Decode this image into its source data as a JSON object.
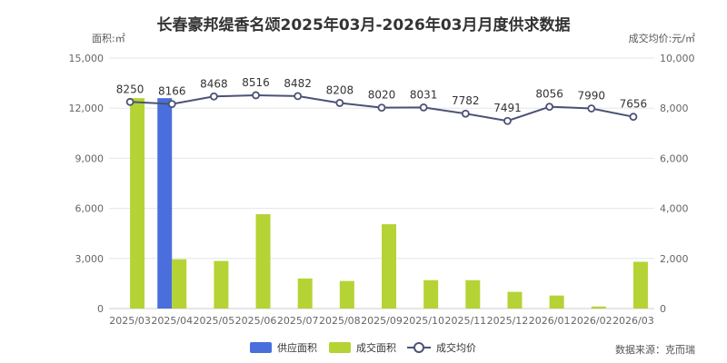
{
  "chart_data": {
    "type": "bar",
    "title": "长春豪邦缇香名颂2025年03月-2026年03月月度供求数据",
    "left_axis_label": "面积:㎡",
    "right_axis_label": "成交均价:元/㎡",
    "categories": [
      "2025/03",
      "2025/04",
      "2025/05",
      "2025/06",
      "2025/07",
      "2025/08",
      "2025/09",
      "2025/10",
      "2025/11",
      "2025/12",
      "2026/01",
      "2026/02",
      "2026/03"
    ],
    "left_ticks": [
      "0",
      "3,000",
      "6,000",
      "9,000",
      "12,000",
      "15,000"
    ],
    "right_ticks": [
      "0",
      "2,000",
      "4,000",
      "6,000",
      "8,000",
      "10,000"
    ],
    "left_ylim": [
      0,
      15000
    ],
    "right_ylim": [
      0,
      10000
    ],
    "series": [
      {
        "name": "供应面积",
        "type": "bar",
        "axis": "left",
        "color": "#4a6fdc",
        "values": [
          0,
          12600,
          0,
          0,
          0,
          0,
          0,
          0,
          0,
          0,
          0,
          0,
          0
        ]
      },
      {
        "name": "成交面积",
        "type": "bar",
        "axis": "left",
        "color": "#b5d334",
        "values": [
          12600,
          2950,
          2850,
          5650,
          1800,
          1650,
          5050,
          1700,
          1700,
          1000,
          780,
          120,
          2800
        ]
      },
      {
        "name": "成交均价",
        "type": "line",
        "axis": "right",
        "color": "#4b5275",
        "values": [
          8250,
          8166,
          8468,
          8516,
          8482,
          8208,
          8020,
          8031,
          7782,
          7491,
          8056,
          7990,
          7656
        ],
        "labels": [
          "8250",
          "8166",
          "8468",
          "8516",
          "8482",
          "8208",
          "8020",
          "8031",
          "7782",
          "7491",
          "8056",
          "7990",
          "7656"
        ]
      }
    ],
    "grid": true,
    "legend_position": "bottom-center",
    "source": "数据来源：克而瑞"
  }
}
